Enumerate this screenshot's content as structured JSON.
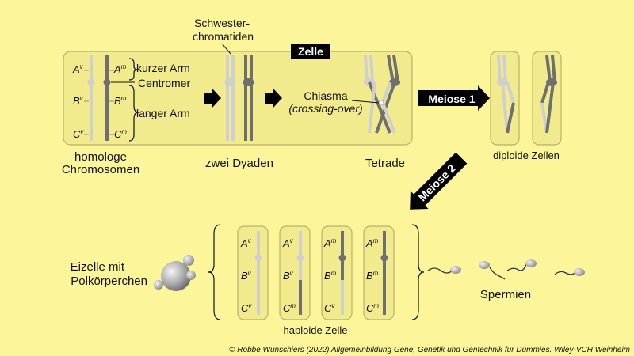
{
  "labels": {
    "zelle": "Zelle",
    "schwester_line1": "Schwester-",
    "schwester_line2": "chromatiden",
    "kurzer_arm": "kurzer Arm",
    "centromer": "Centromer",
    "langer_arm": "langer Arm",
    "homologe_line1": "homologe",
    "homologe_line2": "Chromosomen",
    "zwei_dyaden": "zwei Dyaden",
    "chiasma": "Chiasma",
    "crossing_over": "(crossing-over)",
    "tetrade": "Tetrade",
    "meiose1": "Meiose 1",
    "meiose2": "Meiose 2",
    "diploide_zellen": "diploide Zellen",
    "eizelle_line1": "Eizelle mit",
    "eizelle_line2": "Polkörperchen",
    "spermien": "Spermien",
    "haploide_zelle": "haploide Zelle"
  },
  "alleles": {
    "homolog_left": [
      {
        "base": "A",
        "sup": "v"
      },
      {
        "base": "B",
        "sup": "v"
      },
      {
        "base": "C",
        "sup": "v"
      }
    ],
    "homolog_right": [
      {
        "base": "A",
        "sup": "m"
      },
      {
        "base": "B",
        "sup": "m"
      },
      {
        "base": "C",
        "sup": "m"
      }
    ],
    "haploid_cells": [
      [
        {
          "base": "A",
          "sup": "v"
        },
        {
          "base": "B",
          "sup": "v"
        },
        {
          "base": "C",
          "sup": "v"
        }
      ],
      [
        {
          "base": "A",
          "sup": "v"
        },
        {
          "base": "B",
          "sup": "v"
        },
        {
          "base": "C",
          "sup": "m"
        }
      ],
      [
        {
          "base": "A",
          "sup": "m"
        },
        {
          "base": "B",
          "sup": "m"
        },
        {
          "base": "C",
          "sup": "v"
        }
      ],
      [
        {
          "base": "A",
          "sup": "m"
        },
        {
          "base": "B",
          "sup": "m"
        },
        {
          "base": "C",
          "sup": "m"
        }
      ]
    ]
  },
  "copyright": "© Röbbe Wünschiers (2022) Allgemeinbildung Gene, Genetik und Gentechnik für Dummies. Wiley-VCH Weinheim",
  "colors": {
    "background": "#fcf59a",
    "cell_fill": "#f1eb8d",
    "cell_stroke": "#b8b06a",
    "maternal_dark": "#6f6f6f",
    "paternal_light": "#cfcfcf",
    "arrow": "#000000"
  }
}
